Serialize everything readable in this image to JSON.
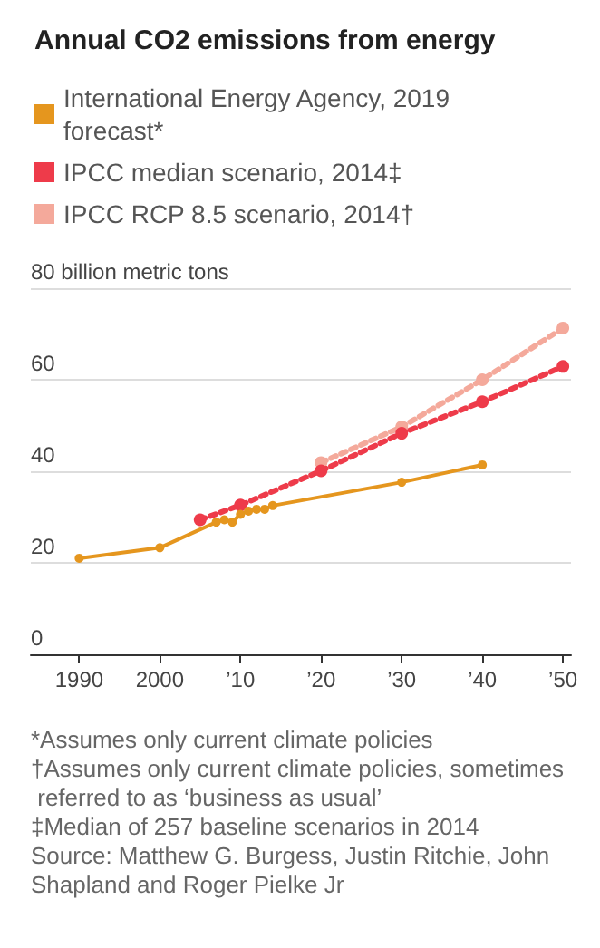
{
  "chart_data": {
    "type": "line",
    "title": "Annual CO2 emissions from energy",
    "xlim": [
      1984,
      2051
    ],
    "xticks": [
      1990,
      2000,
      {
        "value": 2010,
        "label": "’10"
      },
      {
        "value": 2020,
        "label": "’20"
      },
      {
        "value": 2030,
        "label": "’30"
      },
      {
        "value": 2040,
        "label": "’40"
      },
      {
        "value": 2050,
        "label": "’50"
      }
    ],
    "ylim": [
      0,
      80
    ],
    "yticks": [
      0,
      20,
      40,
      60,
      {
        "value": 80,
        "label": "80 billion metric tons"
      }
    ],
    "grid": "y",
    "legend": "top left",
    "marker": "circle",
    "series": [
      {
        "name": "International Energy Agency, 2019 forecast*",
        "color": "#e5961e",
        "line_style": "solid",
        "x": [
          1990,
          2000,
          2007,
          2008,
          2009,
          2010,
          2011,
          2012,
          2013,
          2014,
          2030,
          2040
        ],
        "values": [
          21,
          23.3,
          28.9,
          29.4,
          28.9,
          30.6,
          31.3,
          31.7,
          31.7,
          32.5,
          37.6,
          41.4
        ]
      },
      {
        "name": "IPCC median scenario, 2014‡",
        "color": "#ee3b4a",
        "line_style": "dotted",
        "x": [
          2005,
          2010,
          2020,
          2030,
          2040,
          2050
        ],
        "values": [
          29.4,
          32.6,
          40.1,
          48.3,
          55.2,
          62.9
        ]
      },
      {
        "name": "IPCC RCP 8.5 scenario, 2014†",
        "color": "#f4a99b",
        "line_style": "dotted",
        "x": [
          2020,
          2030,
          2040,
          2050
        ],
        "values": [
          41.9,
          49.7,
          60,
          71.3
        ]
      }
    ],
    "annotations": [
      "*Assumes only current climate policies",
      "†Assumes only current climate policies, sometimes referred to as ‘business as usual’",
      "‡Median of 257 baseline scenarios in 2014",
      "Source: Matthew G. Burgess, Justin Ritchie, John Shapland and Roger Pielke Jr"
    ]
  }
}
